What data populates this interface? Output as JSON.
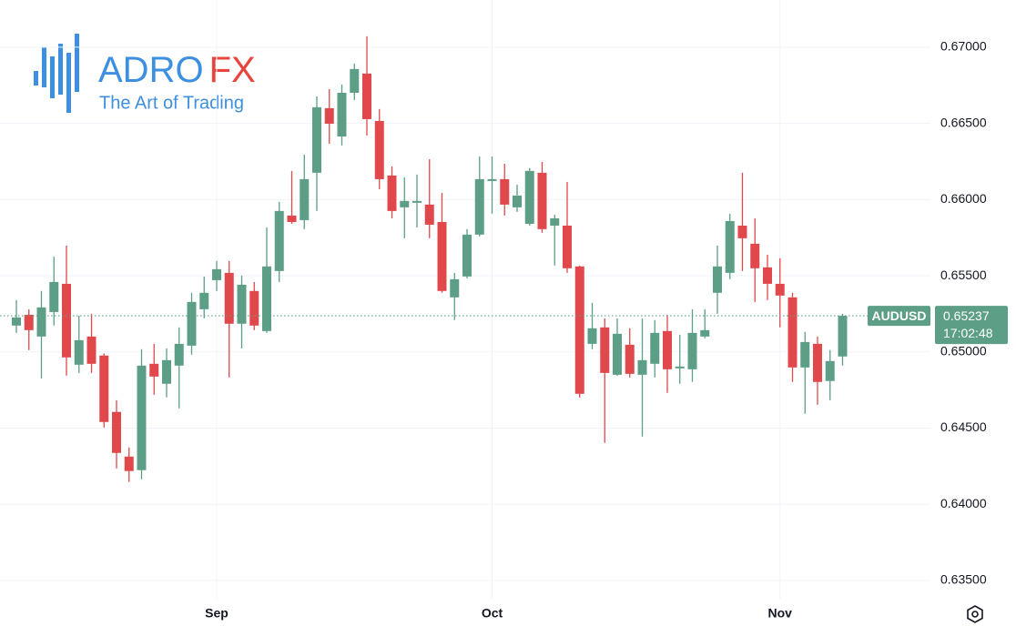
{
  "logo": {
    "name_part1": "ADRO",
    "name_part2": "FX",
    "tagline": "The Art of Trading"
  },
  "chart_data": {
    "type": "candlestick",
    "symbol": "AUDUSD",
    "countdown": "17:02:48",
    "last_price": 0.65237,
    "up_color": "#5c9f86",
    "down_color": "#e0484c",
    "grid": true,
    "categories": [
      null,
      null,
      null,
      null,
      null,
      null,
      null,
      null,
      null,
      null,
      null,
      null,
      null,
      null,
      null,
      null,
      "Sep",
      null,
      null,
      null,
      null,
      null,
      null,
      null,
      null,
      null,
      null,
      null,
      null,
      null,
      null,
      null,
      null,
      null,
      null,
      null,
      null,
      null,
      "Oct",
      null,
      null,
      null,
      null,
      null,
      null,
      null,
      null,
      null,
      null,
      null,
      null,
      null,
      null,
      null,
      null,
      null,
      null,
      null,
      null,
      null,
      null,
      "Nov",
      null,
      null,
      null,
      null,
      null
    ],
    "open": [
      0.65173,
      0.65244,
      0.65101,
      0.65262,
      0.65447,
      0.64916,
      0.65101,
      0.64976,
      0.64606,
      0.64313,
      0.64224,
      0.64922,
      0.64791,
      0.6491,
      0.65041,
      0.6528,
      0.65471,
      0.65519,
      0.65185,
      0.654,
      0.65137,
      0.65531,
      0.65895,
      0.65865,
      0.66176,
      0.666,
      0.66414,
      0.66701,
      0.66827,
      0.66516,
      0.66158,
      0.65949,
      0.65979,
      0.65967,
      0.65853,
      0.65358,
      0.65495,
      0.6577,
      0.66122,
      0.66134,
      0.65949,
      0.65841,
      0.66176,
      0.65829,
      0.65829,
      0.65561,
      0.65053,
      0.65161,
      0.6485,
      0.65047,
      0.6485,
      0.64922,
      0.65137,
      0.64892,
      0.64886,
      0.65101,
      0.65388,
      0.65519,
      0.65829,
      0.6571,
      0.65555,
      0.65447,
      0.65358,
      0.64898,
      0.65053,
      0.64809,
      0.6497
    ],
    "high": [
      0.6534,
      0.6528,
      0.654,
      0.65626,
      0.65698,
      0.65238,
      0.6525,
      0.6499,
      0.64683,
      0.64373,
      0.65018,
      0.65053,
      0.65023,
      0.65161,
      0.65388,
      0.65495,
      0.65597,
      0.65597,
      0.65501,
      0.65459,
      0.65817,
      0.65985,
      0.66188,
      0.66295,
      0.66677,
      0.66725,
      0.66755,
      0.66893,
      0.67072,
      0.66594,
      0.66217,
      0.66146,
      0.66164,
      0.66265,
      0.66044,
      0.65519,
      0.65806,
      0.66283,
      0.66283,
      0.66235,
      0.66098,
      0.66206,
      0.66247,
      0.65901,
      0.66116,
      0.65567,
      0.65322,
      0.6522,
      0.6522,
      0.65155,
      0.6522,
      0.65209,
      0.65244,
      0.65113,
      0.6528,
      0.6528,
      0.65698,
      0.65907,
      0.66176,
      0.65877,
      0.65638,
      0.65615,
      0.65388,
      0.65131,
      0.65101,
      0.65012,
      0.6525
    ],
    "low": [
      0.65125,
      0.65012,
      0.64826,
      0.65173,
      0.64844,
      0.64862,
      0.64862,
      0.64504,
      0.64235,
      0.64146,
      0.64164,
      0.64719,
      0.64701,
      0.64629,
      0.64982,
      0.6522,
      0.654,
      0.64832,
      0.65023,
      0.65143,
      0.65125,
      0.65459,
      0.65841,
      0.65806,
      0.65925,
      0.66367,
      0.66355,
      0.66653,
      0.6642,
      0.66068,
      0.65877,
      0.65746,
      0.65817,
      0.65746,
      0.65388,
      0.65209,
      0.65483,
      0.65758,
      0.65907,
      0.65895,
      0.65919,
      0.65829,
      0.65782,
      0.65567,
      0.65519,
      0.64701,
      0.65018,
      0.64403,
      0.64844,
      0.64832,
      0.64444,
      0.64832,
      0.64731,
      0.64791,
      0.64803,
      0.65089,
      0.6525,
      0.65477,
      0.65531,
      0.65328,
      0.6534,
      0.65161,
      0.64803,
      0.64594,
      0.64653,
      0.64683,
      0.6491
    ],
    "close": [
      0.65226,
      0.65143,
      0.65292,
      0.65459,
      0.64964,
      0.65077,
      0.64922,
      0.6454,
      0.64337,
      0.64218,
      0.6491,
      0.64838,
      0.64946,
      0.65053,
      0.65328,
      0.65388,
      0.65543,
      0.65185,
      0.65441,
      0.65173,
      0.65561,
      0.65925,
      0.65853,
      0.66134,
      0.66606,
      0.66498,
      0.66701,
      0.66857,
      0.66528,
      0.66134,
      0.65925,
      0.65991,
      0.65991,
      0.65835,
      0.654,
      0.65477,
      0.6577,
      0.66134,
      0.66134,
      0.65967,
      0.66026,
      0.66188,
      0.65806,
      0.65877,
      0.65549,
      0.64725,
      0.65155,
      0.64862,
      0.65119,
      0.64856,
      0.64946,
      0.65125,
      0.64886,
      0.64904,
      0.65125,
      0.65143,
      0.65561,
      0.65859,
      0.65746,
      0.65549,
      0.65447,
      0.6537,
      0.64898,
      0.65065,
      0.64803,
      0.6494,
      0.65237
    ],
    "ylim": [
      0.6338,
      0.6731
    ],
    "yticks": [
      {
        "value": 0.635,
        "label": "0.63500"
      },
      {
        "value": 0.64,
        "label": "0.64000"
      },
      {
        "value": 0.645,
        "label": "0.64500"
      },
      {
        "value": 0.65,
        "label": "0.65000"
      },
      {
        "value": 0.655,
        "label": "0.65500"
      },
      {
        "value": 0.66,
        "label": "0.66000"
      },
      {
        "value": 0.665,
        "label": "0.66500"
      },
      {
        "value": 0.67,
        "label": "0.67000"
      }
    ]
  }
}
